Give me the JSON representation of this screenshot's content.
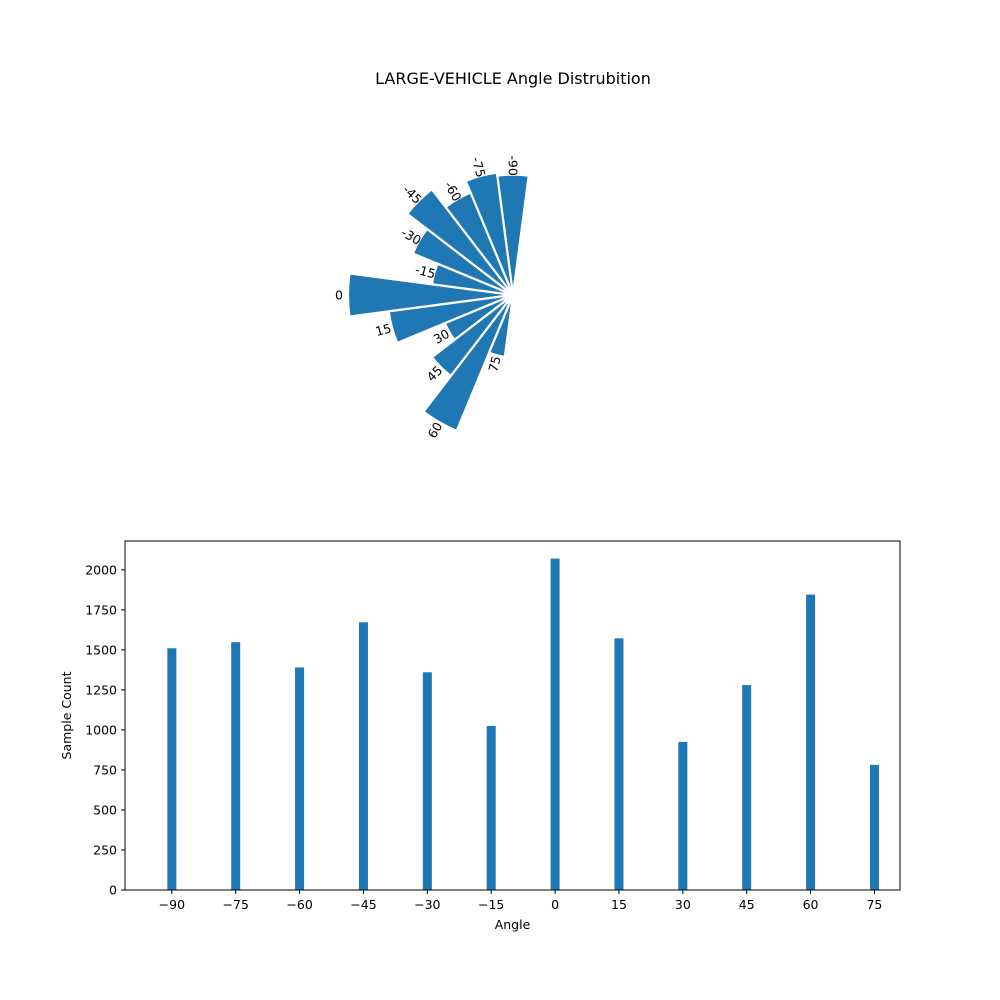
{
  "colors": {
    "bar": "#1f77b4",
    "edge": "#ffffff",
    "axis": "#000000"
  },
  "chart_data": [
    {
      "type": "polar-bar",
      "title": "LARGE-VEHICLE Angle Distrubition",
      "categories": [
        "-90",
        "-75",
        "-60",
        "-45",
        "-30",
        "-15",
        "0",
        "15",
        "30",
        "45",
        "60",
        "75"
      ],
      "angles": [
        -90,
        -75,
        -60,
        -45,
        -30,
        -15,
        0,
        15,
        30,
        45,
        60,
        75
      ],
      "values": [
        1510,
        1548,
        1390,
        1672,
        1360,
        1025,
        2070,
        1572,
        925,
        1280,
        1845,
        782
      ],
      "grid": false
    },
    {
      "type": "bar",
      "xlabel": "Angle",
      "ylabel": "Sample Count",
      "x": [
        -90,
        -75,
        -60,
        -45,
        -30,
        -15,
        0,
        15,
        30,
        45,
        60,
        75
      ],
      "values": [
        1510,
        1548,
        1390,
        1672,
        1360,
        1025,
        2070,
        1572,
        925,
        1280,
        1845,
        782
      ],
      "xticks": [
        "−90",
        "−75",
        "−60",
        "−45",
        "−30",
        "−15",
        "0",
        "15",
        "30",
        "45",
        "60",
        "75"
      ],
      "yticks": [
        "0",
        "250",
        "500",
        "750",
        "1000",
        "1250",
        "1500",
        "1750",
        "2000"
      ],
      "ylim": [
        0,
        2180
      ],
      "xlim": [
        -101,
        81
      ],
      "grid": false
    }
  ]
}
